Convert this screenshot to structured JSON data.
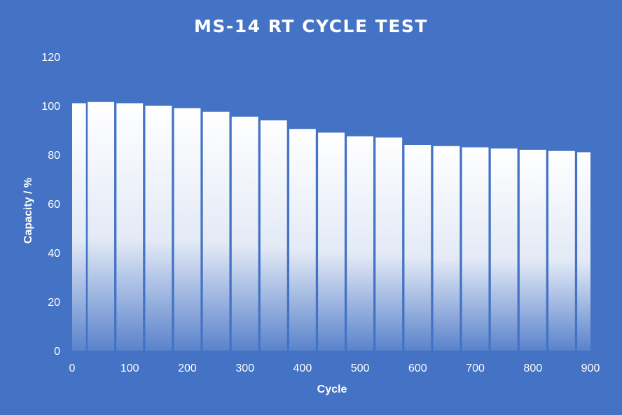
{
  "chart_data": {
    "type": "bar",
    "title": "MS-14 RT CYCLE TEST",
    "xlabel": "Cycle",
    "ylabel": "Capacity / %",
    "xlim": [
      0,
      900
    ],
    "ylim": [
      0,
      120
    ],
    "x_ticks": [
      0,
      100,
      200,
      300,
      400,
      500,
      600,
      700,
      800,
      900
    ],
    "y_ticks": [
      0,
      20,
      40,
      60,
      80,
      100,
      120
    ],
    "grid": false,
    "legend": "none",
    "bar_color": "#FFFFFF",
    "background_color": "#4472C4",
    "series": [
      {
        "x": [
          1,
          50,
          100,
          150,
          200,
          250,
          300,
          350,
          400,
          450,
          500,
          550,
          600,
          650,
          700,
          750,
          800,
          850,
          900
        ],
        "values": [
          101,
          101.5,
          101,
          100,
          99,
          97.5,
          95.5,
          94,
          90.5,
          89,
          87.5,
          87,
          84,
          83.5,
          83,
          82.5,
          82,
          81.5,
          81
        ]
      }
    ]
  }
}
